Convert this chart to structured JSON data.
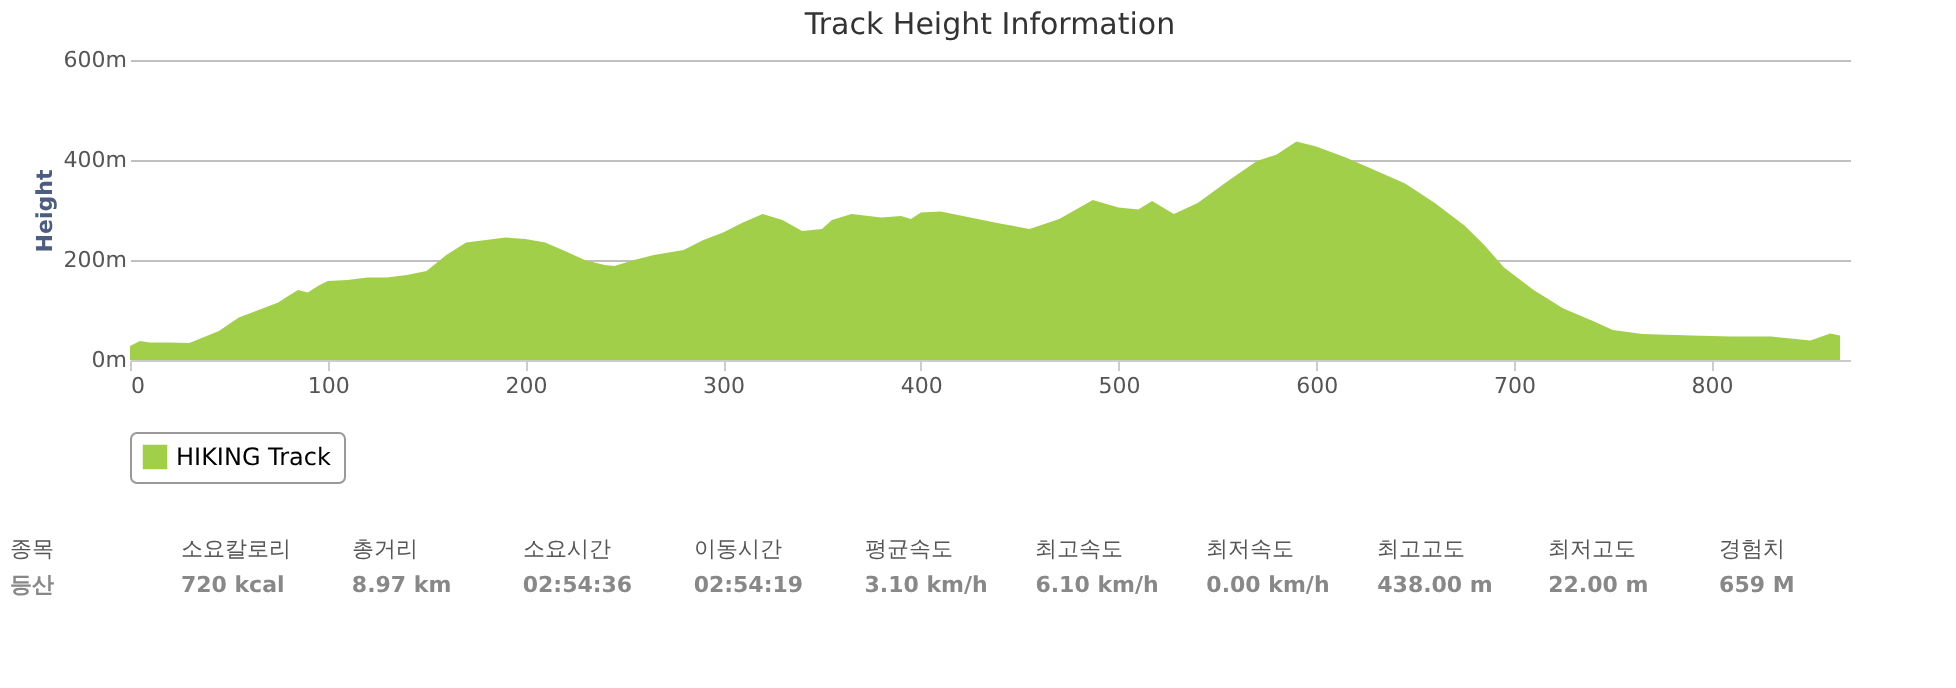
{
  "chart_data": {
    "type": "area",
    "title": "Track Height Information",
    "ylabel": "Height",
    "x": [
      0,
      5,
      10,
      20,
      30,
      35,
      45,
      55,
      65,
      75,
      80,
      85,
      90,
      95,
      100,
      110,
      120,
      130,
      140,
      150,
      160,
      170,
      180,
      190,
      200,
      210,
      220,
      230,
      240,
      245,
      255,
      265,
      280,
      290,
      300,
      310,
      320,
      330,
      340,
      350,
      355,
      365,
      380,
      390,
      395,
      400,
      410,
      440,
      455,
      470,
      487,
      500,
      510,
      517,
      528,
      540,
      555,
      570,
      580,
      590,
      600,
      615,
      630,
      645,
      660,
      675,
      685,
      695,
      710,
      725,
      740,
      750,
      765,
      790,
      810,
      830,
      850,
      860,
      865
    ],
    "series": [
      {
        "name": "HIKING Track",
        "color": "#a2cf4a",
        "values": [
          28,
          38,
          35,
          35,
          34,
          42,
          58,
          85,
          100,
          115,
          128,
          140,
          135,
          148,
          158,
          160,
          165,
          165,
          170,
          178,
          210,
          235,
          240,
          245,
          242,
          235,
          218,
          200,
          190,
          188,
          200,
          210,
          220,
          240,
          255,
          275,
          292,
          280,
          258,
          262,
          280,
          292,
          285,
          288,
          282,
          295,
          297,
          273,
          262,
          282,
          320,
          305,
          301,
          318,
          292,
          314,
          357,
          398,
          411,
          437,
          427,
          405,
          379,
          353,
          314,
          269,
          230,
          185,
          140,
          103,
          78,
          60,
          52,
          49,
          47,
          47,
          39,
          53,
          49
        ]
      }
    ],
    "xlim": [
      0,
      870
    ],
    "xticks": [
      0,
      100,
      200,
      300,
      400,
      500,
      600,
      700,
      800
    ],
    "ylim": [
      0,
      600
    ],
    "yticks": [
      {
        "value": 0,
        "label": "0m"
      },
      {
        "value": 200,
        "label": "200m"
      },
      {
        "value": 400,
        "label": "400m"
      },
      {
        "value": 600,
        "label": "600m"
      }
    ],
    "grid": "y",
    "legend": "bottom",
    "annotations": [
      "종목",
      "등산",
      "소요칼로리",
      "720 kcal",
      "총거리",
      "8.97 km",
      "소요시간",
      "02:54:36",
      "이동시간",
      "02:54:19",
      "평균속도",
      "3.10 km/h",
      "최고속도",
      "6.10 km/h",
      "최저속도",
      "0.00 km/h",
      "최고고도",
      "438.00 m",
      "최저고도",
      "22.00 m",
      "경험치",
      "659 M"
    ]
  }
}
